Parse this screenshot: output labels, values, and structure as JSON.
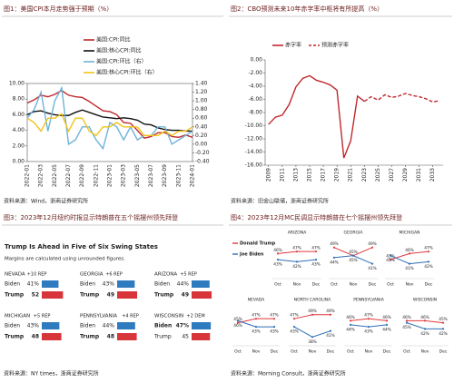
{
  "figures": [
    {
      "caption": "图1：美国CPI本月走势强于预期（%）",
      "source": "资料来源：Wind，浙商证券研究所"
    },
    {
      "caption": "图2：CBO预测未来10年赤字率中枢将有所提高（%）",
      "source": "资料来源：旧金山联储，浙商证券研究所"
    },
    {
      "caption": "图3：2023年12月纽约时报显示特朗普在五个摇摆州领先拜登",
      "source": "资料来源：NY times，浙商证券研究所"
    },
    {
      "caption": "图4：2023年12月MC民调显示特朗普在七个摇摆州领先拜登",
      "source": "资料来源：Morning Consult，浙商证券研究所"
    }
  ],
  "chart_data": [
    {
      "type": "line",
      "categories": [
        "2022-01",
        null,
        "2022-03",
        null,
        "2022-05",
        null,
        "2022-07",
        null,
        "2022-09",
        null,
        "2022-11",
        null,
        "2023-01",
        null,
        "2023-03",
        null,
        "2023-05",
        null,
        "2023-07",
        null,
        "2023-09",
        null,
        "2023-11",
        null,
        "2024-01"
      ],
      "series": [
        {
          "name": "美国:CPI:同比",
          "color": "#c0282d",
          "values": [
            7.5,
            7.9,
            8.5,
            8.3,
            8.6,
            9.1,
            8.5,
            8.3,
            8.2,
            7.7,
            7.1,
            6.5,
            6.4,
            6.0,
            5.0,
            4.9,
            4.0,
            3.0,
            3.2,
            3.7,
            3.7,
            3.2,
            3.1,
            3.4,
            3.1
          ]
        },
        {
          "name": "美国:核心CPI:同比",
          "color": "#111111",
          "values": [
            6.0,
            6.4,
            6.5,
            6.2,
            6.0,
            5.9,
            5.9,
            6.3,
            6.6,
            6.3,
            6.0,
            5.7,
            5.6,
            5.5,
            5.6,
            5.5,
            5.3,
            4.8,
            4.7,
            4.3,
            4.1,
            4.0,
            4.0,
            3.9,
            3.9
          ]
        },
        {
          "name": "美国:CPI:环比（右）",
          "color": "#6fb3d8",
          "axis": "y2",
          "values": [
            0.6,
            0.8,
            1.2,
            0.3,
            1.0,
            1.3,
            0.0,
            0.1,
            0.4,
            0.4,
            0.1,
            -0.1,
            0.5,
            0.4,
            0.1,
            0.4,
            0.1,
            0.2,
            0.2,
            0.4,
            0.4,
            0.0,
            0.1,
            0.2,
            0.3
          ]
        },
        {
          "name": "美国:核心CPI:环比（右）",
          "color": "#f2c318",
          "axis": "y2",
          "values": [
            0.6,
            0.5,
            0.3,
            0.6,
            0.6,
            0.7,
            0.3,
            0.6,
            0.6,
            0.3,
            0.2,
            0.4,
            0.4,
            0.5,
            0.4,
            0.4,
            0.4,
            0.2,
            0.2,
            0.2,
            0.3,
            0.2,
            0.3,
            0.3,
            0.4
          ]
        }
      ],
      "ylim": [
        0,
        10
      ],
      "yticks": [
        {
          "value": 0,
          "label": "0.00"
        },
        {
          "value": 2,
          "label": "2.00"
        },
        {
          "value": 4,
          "label": "4.00"
        },
        {
          "value": 6,
          "label": "6.00"
        },
        {
          "value": 8,
          "label": "8.00"
        },
        {
          "value": 10,
          "label": "10.00"
        }
      ],
      "y2lim": [
        -0.4,
        1.4
      ],
      "y2ticks": [
        {
          "value": -0.4,
          "label": "-0.40"
        },
        {
          "value": -0.2,
          "label": "-0.20"
        },
        {
          "value": 0,
          "label": "0.00"
        },
        {
          "value": 0.2,
          "label": "0.20"
        },
        {
          "value": 0.4,
          "label": "0.40"
        },
        {
          "value": 0.6,
          "label": "0.60"
        },
        {
          "value": 0.8,
          "label": "0.80"
        },
        {
          "value": 1.0,
          "label": "1.00"
        },
        {
          "value": 1.2,
          "label": "1.20"
        },
        {
          "value": 1.4,
          "label": "1.40"
        }
      ],
      "grid": false
    },
    {
      "type": "line",
      "x": [
        2009,
        2010,
        2011,
        2012,
        2013,
        2014,
        2015,
        2016,
        2017,
        2018,
        2019,
        2020,
        2021,
        2022,
        2023,
        2024,
        2025,
        2026,
        2027,
        2028,
        2029,
        2030,
        2031,
        2032,
        2033,
        2034
      ],
      "series": [
        {
          "name": "赤字率",
          "color": "#c0282d",
          "values": [
            -9.8,
            -8.7,
            -8.4,
            -6.8,
            -4.1,
            -2.8,
            -2.4,
            -3.1,
            -3.4,
            -3.8,
            -4.6,
            -14.9,
            -12.3,
            -5.5,
            -6.3,
            null,
            null,
            null,
            null,
            null,
            null,
            null,
            null,
            null,
            null,
            null
          ]
        },
        {
          "name": "预测赤字率",
          "color": "#c0282d",
          "dashed": true,
          "values": [
            null,
            null,
            null,
            null,
            null,
            null,
            null,
            null,
            null,
            null,
            null,
            null,
            null,
            null,
            -6.3,
            -5.6,
            -6.1,
            -5.3,
            -5.7,
            -5.5,
            -5.1,
            -5.4,
            -5.6,
            -5.9,
            -6.4,
            -6.2
          ]
        }
      ],
      "xlim": [
        2008.5,
        2034.5
      ],
      "xticks": [
        2009,
        2011,
        2013,
        2015,
        2017,
        2019,
        2021,
        2023,
        2025,
        2027,
        2029,
        2031,
        2033
      ],
      "ylim": [
        -16,
        0
      ],
      "yticks": [
        {
          "value": 0,
          "label": "0.00"
        },
        {
          "value": -2,
          "label": "-2.00"
        },
        {
          "value": -4,
          "label": "-4.00"
        },
        {
          "value": -6,
          "label": "-6.00"
        },
        {
          "value": -8,
          "label": "-8.00"
        },
        {
          "value": -10,
          "label": "-10.00"
        },
        {
          "value": -12,
          "label": "-12.00"
        },
        {
          "value": -14,
          "label": "-14.00"
        },
        {
          "value": -16,
          "label": "-16.00"
        }
      ],
      "grid": false
    }
  ],
  "swing_states": {
    "title": "Trump Is Ahead in Five of Six Swing States",
    "subtitle": "Margins are calculated using unrounded figures.",
    "candidates": [
      "Biden",
      "Trump"
    ],
    "colors": [
      "#2f7bc0",
      "#d8353b"
    ],
    "states": [
      {
        "name": "NEVADA",
        "margin": "+10 REP",
        "values": [
          41,
          52
        ],
        "value_labels": [
          "41%",
          "52"
        ]
      },
      {
        "name": "GEORGIA",
        "margin": "+6 REP",
        "values": [
          43,
          49
        ],
        "value_labels": [
          "43%",
          "49"
        ]
      },
      {
        "name": "ARIZONA",
        "margin": "+5 REP",
        "values": [
          44,
          49
        ],
        "value_labels": [
          "44%",
          "49"
        ]
      },
      {
        "name": "MICHIGAN",
        "margin": "+5 REP",
        "values": [
          43,
          48
        ],
        "value_labels": [
          "43%",
          "48"
        ]
      },
      {
        "name": "PENNSYLVANIA",
        "margin": "+4 REP",
        "values": [
          44,
          48
        ],
        "value_labels": [
          "44%",
          "48"
        ]
      },
      {
        "name": "WISCONSIN",
        "margin": "+2 DEM",
        "values": [
          47,
          45
        ],
        "value_labels": [
          "47%",
          "45"
        ]
      }
    ]
  },
  "mc_poll": {
    "series": [
      {
        "name": "Donald Trump",
        "color": "#e0393e"
      },
      {
        "name": "Joe Biden",
        "color": "#2f6fb5"
      }
    ],
    "months": [
      "Oct",
      "Nov",
      "Dec"
    ],
    "ylim": [
      35,
      52
    ],
    "states": [
      {
        "name": "ARIZONA",
        "values": [
          [
            46,
            47,
            47
          ],
          [
            43,
            42,
            43
          ]
        ],
        "value_labels": [
          [
            "46%",
            "47%",
            "47%"
          ],
          [
            "43%",
            "42%",
            "43%"
          ]
        ]
      },
      {
        "name": "GEORGIA",
        "values": [
          [
            49,
            45,
            49
          ],
          [
            44,
            45,
            41
          ]
        ],
        "value_labels": [
          [
            "49%",
            "45%",
            "49%"
          ],
          [
            "44%",
            "45%",
            "41%"
          ]
        ]
      },
      {
        "name": "MICHIGAN",
        "values": [
          [
            43,
            46,
            47
          ],
          [
            45,
            41,
            42
          ]
        ],
        "value_labels": [
          [
            "43%",
            "46%",
            "47%"
          ],
          [
            "45%",
            "41%",
            "42%"
          ]
        ]
      },
      {
        "name": "NEVADA",
        "values": [
          [
            45,
            47,
            47
          ],
          [
            46,
            43,
            43
          ]
        ],
        "value_labels": [
          [
            "45%",
            "47%",
            "47%"
          ],
          [
            "46%",
            "43%",
            "43%"
          ]
        ]
      },
      {
        "name": "NORTH CAROLINA",
        "values": [
          [
            47,
            49,
            49
          ],
          [
            43,
            38,
            41
          ]
        ],
        "value_labels": [
          [
            "47%",
            "49%",
            "49%"
          ],
          [
            "43%",
            "38%",
            "41%"
          ]
        ]
      },
      {
        "name": "PENNSYLVANIA",
        "values": [
          [
            46,
            47,
            46
          ],
          [
            44,
            43,
            44
          ]
        ],
        "value_labels": [
          [
            "46%",
            "47%",
            "46%"
          ],
          [
            "44%",
            "43%",
            "44%"
          ]
        ]
      },
      {
        "name": "WISCONSIN",
        "values": [
          [
            46,
            46,
            45
          ],
          [
            45,
            42,
            42
          ]
        ],
        "value_labels": [
          [
            "46%",
            "46%",
            "45%"
          ],
          [
            "45%",
            "42%",
            "42%"
          ]
        ]
      }
    ]
  }
}
